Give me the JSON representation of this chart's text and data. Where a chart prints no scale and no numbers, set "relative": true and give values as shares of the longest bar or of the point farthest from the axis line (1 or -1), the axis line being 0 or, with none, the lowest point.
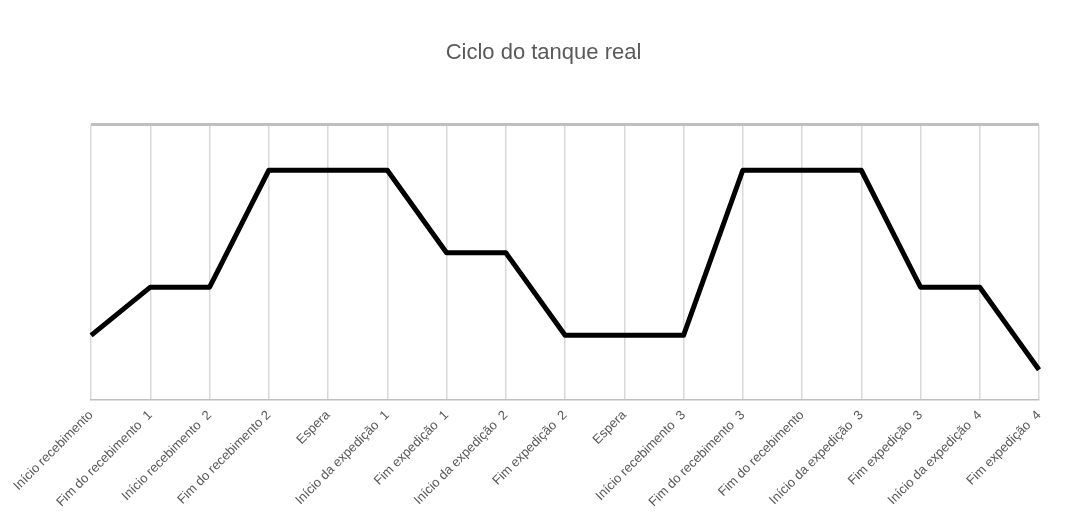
{
  "chart_data": {
    "type": "line",
    "title": "Ciclo do tanque real",
    "relative": true,
    "categories": [
      "Início recebimento",
      "Fim do recebimento  1",
      "Início recebimento  2",
      "Fim do recebimento 2",
      "Espera",
      "Início da expedição  1",
      "Fim expedição  1",
      "Início da expedição  2",
      "Fim expedição  2",
      "Espera",
      "Início recebimento  3",
      "Fim do recebimento  3",
      "Fim do recebimento",
      "Início da expedição  3",
      "Fim expedição  3",
      "Início da expedição  4",
      "Fim expedição  4"
    ],
    "values": [
      0.28,
      0.49,
      0.49,
      1,
      1,
      1,
      0.64,
      0.64,
      0.28,
      0.28,
      0.28,
      1,
      1,
      1,
      0.49,
      0.49,
      0.13
    ],
    "color": "#000000",
    "grid": "x",
    "marker": "none"
  }
}
